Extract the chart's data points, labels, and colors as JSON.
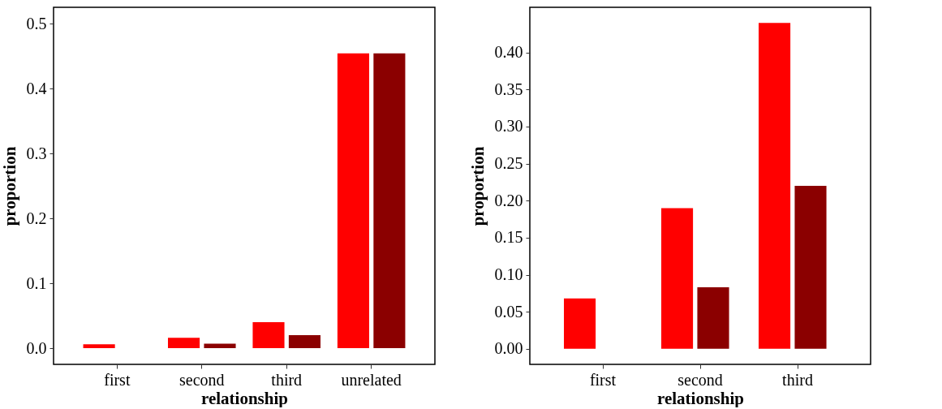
{
  "chart_data": [
    {
      "type": "bar",
      "xlabel": "relationship",
      "ylabel": "proportion",
      "categories": [
        "first",
        "second",
        "third",
        "unrelated"
      ],
      "series": [
        {
          "color": "#ff0000",
          "values": [
            0.006,
            0.016,
            0.04,
            0.454
          ]
        },
        {
          "color": "#8b0000",
          "values": [
            null,
            0.007,
            0.02,
            0.454
          ]
        }
      ],
      "ylim": [
        -0.025,
        0.525
      ],
      "yticks": [
        {
          "value": 0,
          "label": "0.0"
        },
        {
          "value": 0.1,
          "label": "0.1"
        },
        {
          "value": 0.2,
          "label": "0.2"
        },
        {
          "value": 0.3,
          "label": "0.3"
        },
        {
          "value": 0.4,
          "label": "0.4"
        },
        {
          "value": 0.5,
          "label": "0.5"
        }
      ],
      "grid": false,
      "legend": false
    },
    {
      "type": "bar",
      "xlabel": "relationship",
      "ylabel": "proportion",
      "categories": [
        "first",
        "second",
        "third"
      ],
      "series": [
        {
          "color": "#ff0000",
          "values": [
            0.068,
            0.19,
            0.44
          ]
        },
        {
          "color": "#8b0000",
          "values": [
            null,
            0.083,
            0.22
          ]
        }
      ],
      "ylim": [
        -0.021,
        0.461
      ],
      "yticks": [
        {
          "value": 0,
          "label": "0.00"
        },
        {
          "value": 0.05,
          "label": "0.05"
        },
        {
          "value": 0.1,
          "label": "0.10"
        },
        {
          "value": 0.15,
          "label": "0.15"
        },
        {
          "value": 0.2,
          "label": "0.20"
        },
        {
          "value": 0.25,
          "label": "0.25"
        },
        {
          "value": 0.3,
          "label": "0.30"
        },
        {
          "value": 0.35,
          "label": "0.35"
        },
        {
          "value": 0.4,
          "label": "0.40"
        }
      ],
      "grid": false,
      "legend": false
    }
  ]
}
